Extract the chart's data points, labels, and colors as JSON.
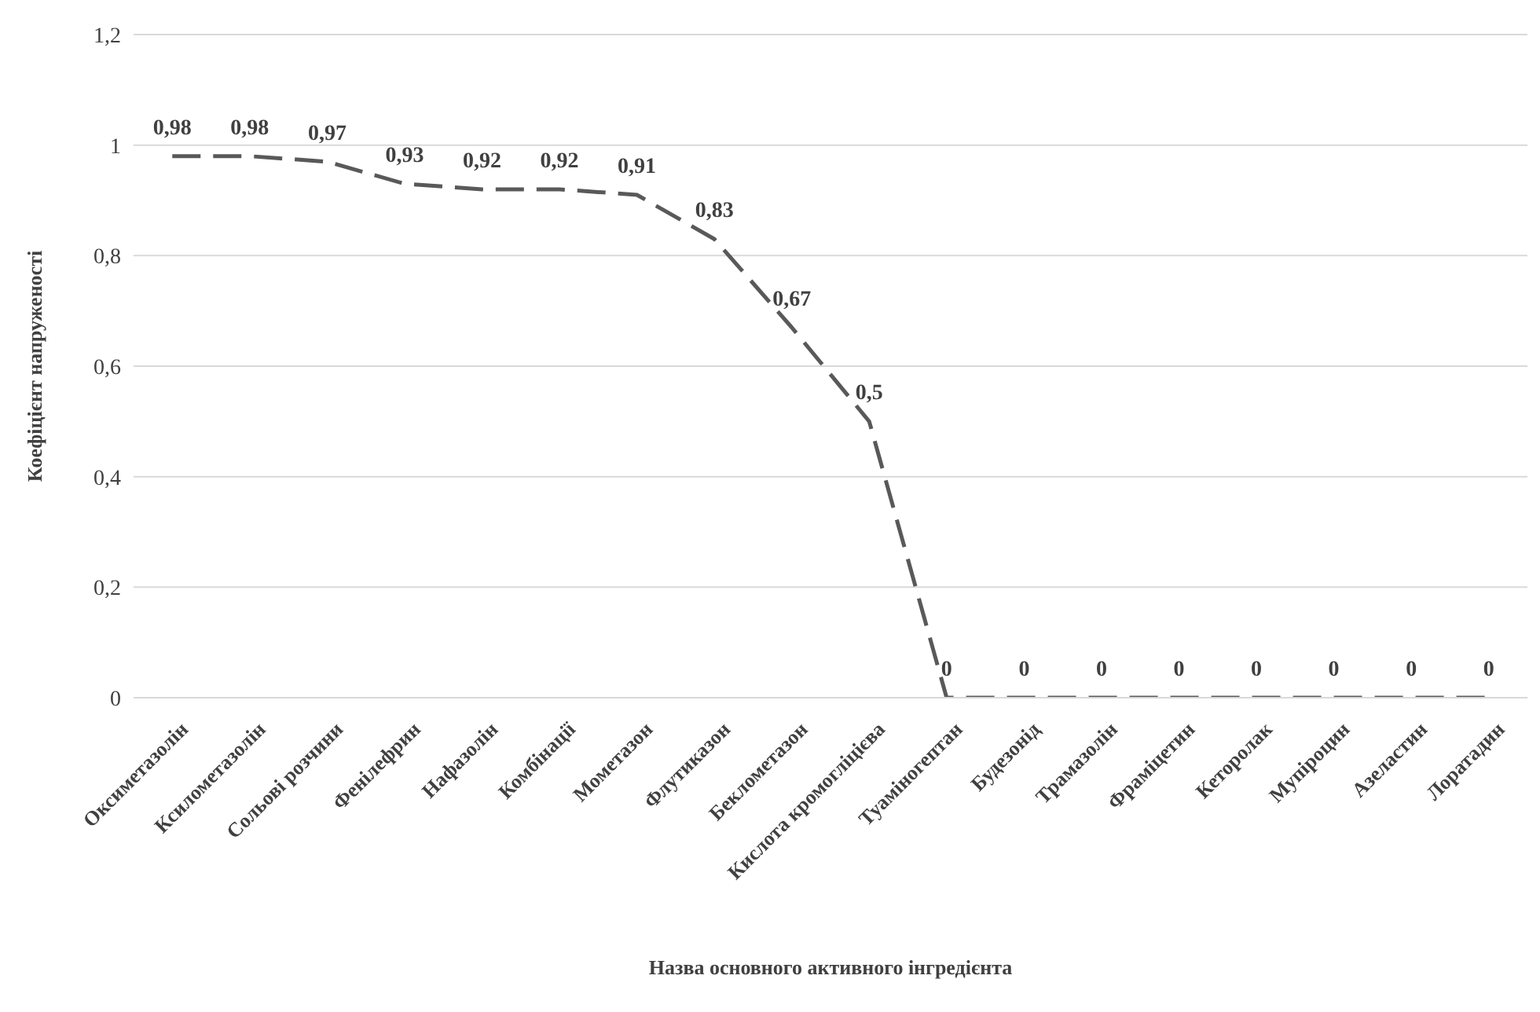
{
  "chart_data": {
    "type": "line",
    "xlabel": "Назва основного активного інгредієнта",
    "ylabel": "Коефіцієнт напруженості",
    "categories": [
      "Оксиметазолін",
      "Ксилометазолін",
      "Сольові розчини",
      "Фенілефрин",
      "Нафазолін",
      "Комбінації",
      "Мометазон",
      "Флутиказон",
      "Беклометазон",
      "Кислота кромогліцієва",
      "Туаміногептан",
      "Будезонід",
      "Трамазолін",
      "Фраміцетин",
      "Кеторолак",
      "Мупіроцин",
      "Азеластин",
      "Лоратадин"
    ],
    "series": [
      {
        "color": "#595959",
        "values": [
          0.98,
          0.98,
          0.97,
          0.93,
          0.92,
          0.92,
          0.91,
          0.83,
          0.67,
          0.5,
          0,
          0,
          0,
          0,
          0,
          0,
          0,
          0
        ],
        "value_labels": [
          "0,98",
          "0,98",
          "0,97",
          "0,93",
          "0,92",
          "0,92",
          "0,91",
          "0,83",
          "0,67",
          "0,5",
          "0",
          "0",
          "0",
          "0",
          "0",
          "0",
          "0",
          "0"
        ]
      }
    ],
    "ylim": [
      0,
      1.2
    ],
    "yticks": [
      0,
      {
        "value": 0.2,
        "label": "0,2"
      },
      {
        "value": 0.4,
        "label": "0,4"
      },
      {
        "value": 0.6,
        "label": "0,6"
      },
      {
        "value": 0.8,
        "label": "0,8"
      },
      1,
      {
        "value": 1.2,
        "label": "1,2"
      }
    ],
    "grid": "y",
    "line_style": "dashed",
    "marker": "none"
  }
}
